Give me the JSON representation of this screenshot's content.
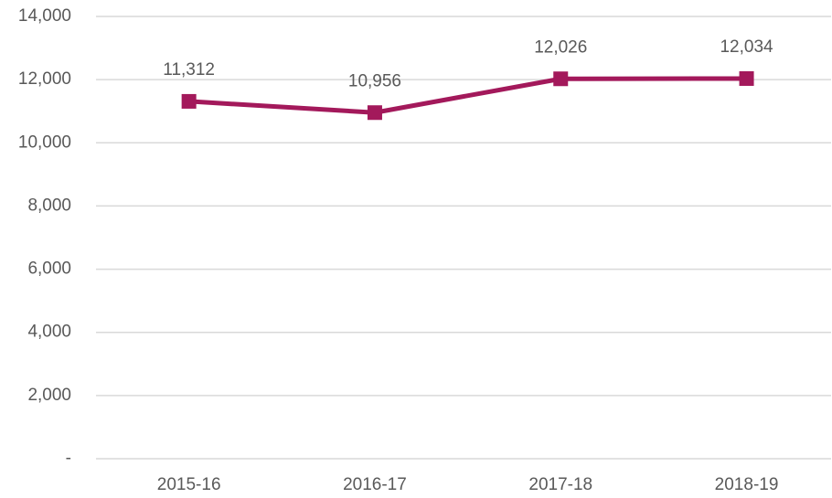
{
  "chart_data": {
    "type": "line",
    "categories": [
      "2015-16",
      "2016-17",
      "2017-18",
      "2018-19"
    ],
    "series": [
      {
        "name": null,
        "color": "#a3195b",
        "values": [
          11312,
          10956,
          12026,
          12034
        ],
        "value_labels": [
          "11,312",
          "10,956",
          "12,026",
          "12,034"
        ]
      }
    ],
    "ylim": [
      0,
      14000
    ],
    "yticks": [
      {
        "value": 0,
        "label": "-"
      },
      {
        "value": 2000,
        "label": "2,000"
      },
      {
        "value": 4000,
        "label": "4,000"
      },
      {
        "value": 6000,
        "label": "6,000"
      },
      {
        "value": 8000,
        "label": "8,000"
      },
      {
        "value": 10000,
        "label": "10,000"
      },
      {
        "value": 12000,
        "label": "12,000"
      },
      {
        "value": 14000,
        "label": "14,000"
      }
    ],
    "grid": true
  }
}
